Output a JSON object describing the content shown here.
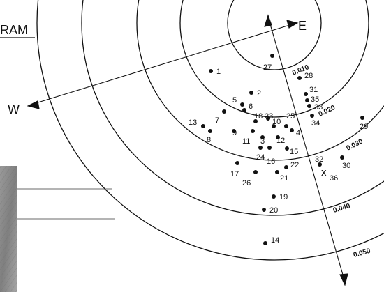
{
  "title_fragment": "RAM",
  "directions": {
    "east": "E",
    "west": "W"
  },
  "contours": [
    {
      "label": "0.010"
    },
    {
      "label": "0.020"
    },
    {
      "label": "0.030"
    },
    {
      "label": "0.040"
    },
    {
      "label": "0.050"
    }
  ],
  "points": [
    {
      "id": "1"
    },
    {
      "id": "2"
    },
    {
      "id": "3"
    },
    {
      "id": "4"
    },
    {
      "id": "5"
    },
    {
      "id": "6"
    },
    {
      "id": "7"
    },
    {
      "id": "8"
    },
    {
      "id": "9"
    },
    {
      "id": "10"
    },
    {
      "id": "11"
    },
    {
      "id": "12"
    },
    {
      "id": "13"
    },
    {
      "id": "14"
    },
    {
      "id": "15"
    },
    {
      "id": "16"
    },
    {
      "id": "17"
    },
    {
      "id": "18"
    },
    {
      "id": "19"
    },
    {
      "id": "20"
    },
    {
      "id": "21"
    },
    {
      "id": "22"
    },
    {
      "id": "23"
    },
    {
      "id": "24"
    },
    {
      "id": "25"
    },
    {
      "id": "26"
    },
    {
      "id": "27"
    },
    {
      "id": "28"
    },
    {
      "id": "29"
    },
    {
      "id": "30"
    },
    {
      "id": "31"
    },
    {
      "id": "32"
    },
    {
      "id": "33"
    },
    {
      "id": "34"
    },
    {
      "id": "35"
    }
  ],
  "marker": {
    "symbol": "x",
    "label": "36"
  },
  "colors": {
    "ink": "#111111",
    "panel": "#8a8a8a",
    "panel_light": "#b5b5b5"
  }
}
